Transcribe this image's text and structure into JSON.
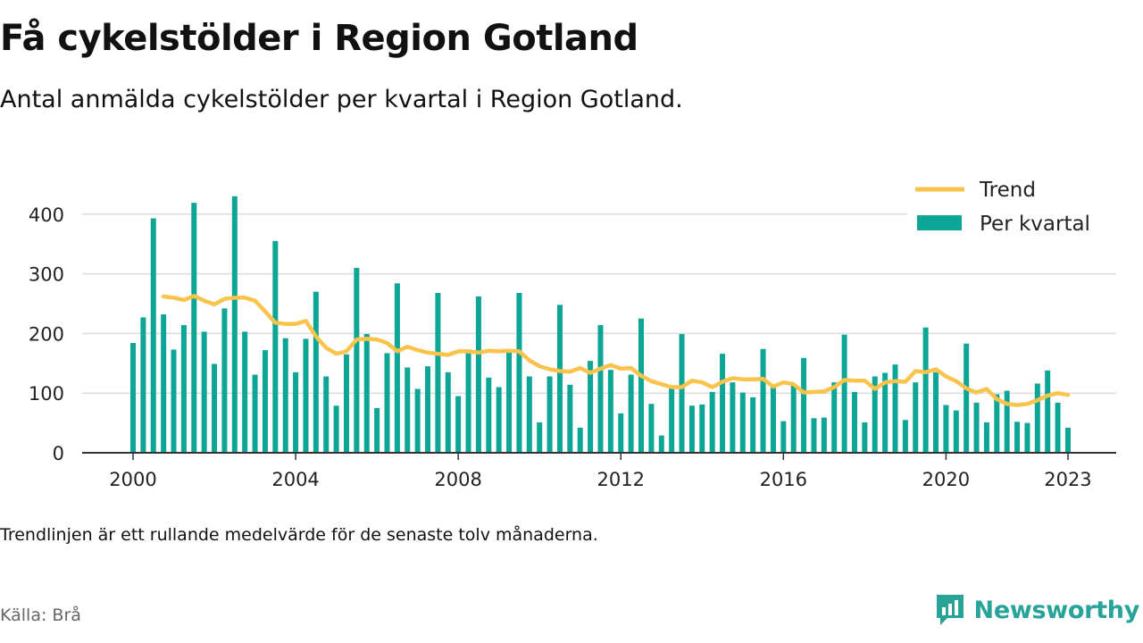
{
  "title": "Få cykelstölder i Region Gotland",
  "subtitle": "Antal anmälda cykelstölder per kvartal i Region Gotland.",
  "note": "Trendlinjen är ett rullande medelvärde för de senaste tolv månaderna.",
  "source": "Källa: Brå",
  "logo_text": "Newsworthy",
  "colors": {
    "bar": "#0da596",
    "trend": "#f9c34c",
    "grid": "#dddddd",
    "axis": "#333333",
    "logo": "#27a39a"
  },
  "chart_data": {
    "type": "bar",
    "start_year": 2000,
    "xtick_labels": [
      "2000",
      "2004",
      "2008",
      "2012",
      "2016",
      "2020",
      "2023"
    ],
    "ylim": [
      0,
      450
    ],
    "yticks": [
      0,
      100,
      200,
      300,
      400
    ],
    "grid": true,
    "legend_position": "top-right",
    "series": [
      {
        "name": "Per kvartal",
        "type": "bar",
        "values": [
          184,
          227,
          393,
          232,
          173,
          214,
          419,
          203,
          149,
          242,
          430,
          203,
          131,
          172,
          355,
          192,
          135,
          191,
          270,
          128,
          79,
          165,
          310,
          199,
          75,
          167,
          284,
          143,
          107,
          145,
          268,
          135,
          95,
          168,
          262,
          126,
          110,
          168,
          268,
          128,
          51,
          128,
          248,
          114,
          42,
          154,
          214,
          139,
          66,
          131,
          225,
          82,
          29,
          113,
          199,
          79,
          81,
          102,
          166,
          118,
          101,
          93,
          174,
          113,
          53,
          114,
          159,
          58,
          59,
          118,
          198,
          102,
          51,
          128,
          134,
          148,
          55,
          118,
          210,
          135,
          80,
          71,
          183,
          84,
          51,
          98,
          104,
          52,
          50,
          116,
          138,
          84,
          42
        ]
      },
      {
        "name": "Trend",
        "type": "line",
        "values": [
          null,
          null,
          null,
          262,
          260,
          256,
          263,
          255,
          249,
          258,
          260,
          260,
          255,
          237,
          218,
          216,
          216,
          221,
          195,
          176,
          166,
          170,
          190,
          191,
          190,
          184,
          170,
          178,
          172,
          168,
          166,
          164,
          170,
          170,
          168,
          171,
          170,
          171,
          170,
          155,
          145,
          140,
          137,
          136,
          142,
          134,
          141,
          147,
          141,
          142,
          129,
          120,
          115,
          110,
          110,
          121,
          118,
          110,
          119,
          125,
          123,
          123,
          124,
          111,
          118,
          115,
          101,
          102,
          103,
          110,
          122,
          121,
          121,
          107,
          118,
          120,
          119,
          137,
          135,
          140,
          128,
          120,
          108,
          101,
          107,
          90,
          82,
          80,
          82,
          88,
          96,
          100,
          97
        ]
      }
    ]
  }
}
